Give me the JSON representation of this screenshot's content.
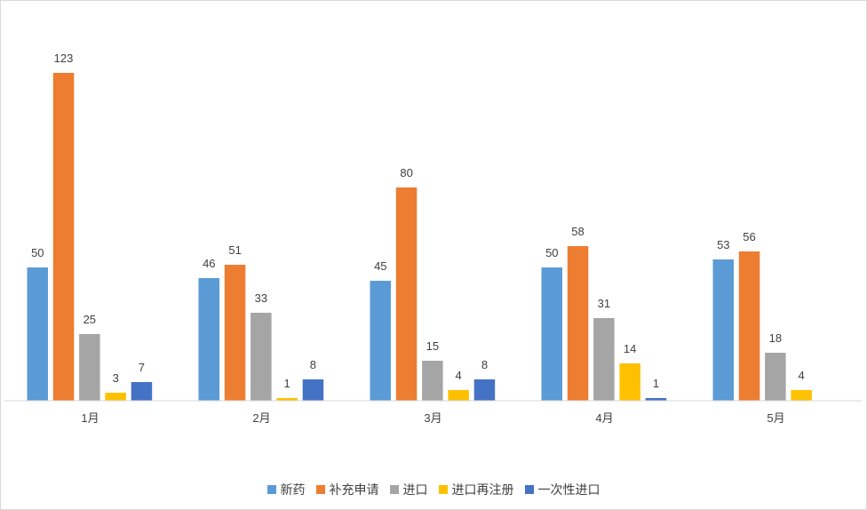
{
  "chart_data": {
    "type": "bar",
    "categories": [
      "1月",
      "2月",
      "3月",
      "4月",
      "5月"
    ],
    "series": [
      {
        "name": "新药",
        "color": "#5b9bd5",
        "values": [
          50,
          46,
          45,
          50,
          53
        ]
      },
      {
        "name": "补充申请",
        "color": "#ed7d31",
        "values": [
          123,
          51,
          80,
          58,
          56
        ]
      },
      {
        "name": "进口",
        "color": "#a5a5a5",
        "values": [
          25,
          33,
          15,
          31,
          18
        ]
      },
      {
        "name": "进口再注册",
        "color": "#ffc000",
        "values": [
          3,
          1,
          4,
          14,
          4
        ]
      },
      {
        "name": "一次性进口",
        "color": "#4472c4",
        "values": [
          7,
          8,
          8,
          1,
          null
        ]
      }
    ],
    "ylim": [
      0,
      125
    ],
    "grid": false,
    "legend_position": "bottom"
  }
}
